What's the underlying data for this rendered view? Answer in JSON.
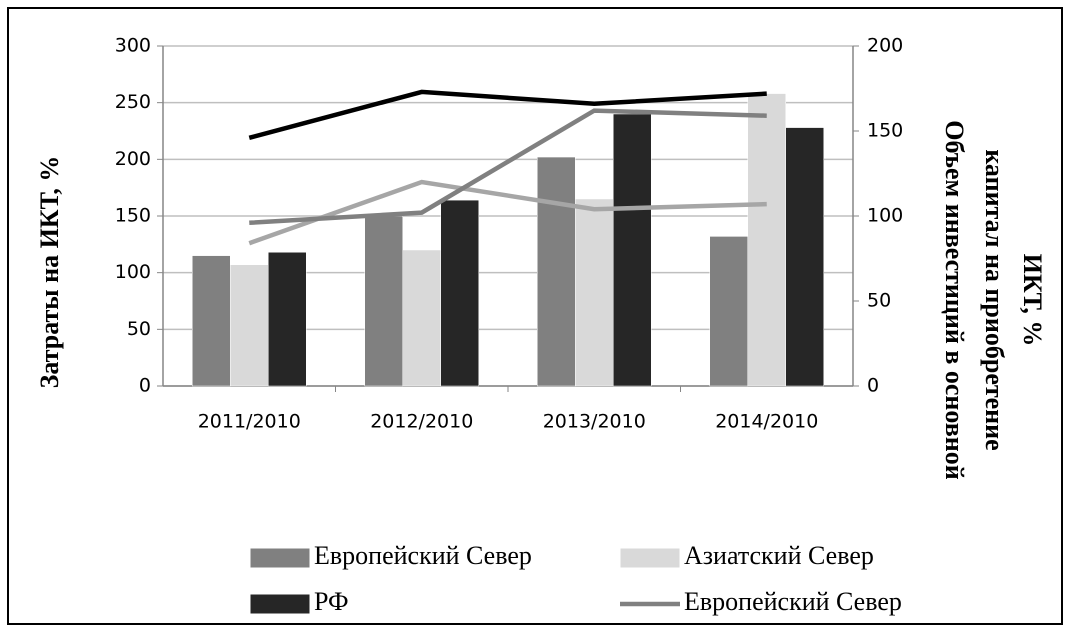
{
  "chart_data": {
    "type": "bar",
    "categories": [
      "2011/2010",
      "2012/2010",
      "2013/2010",
      "2014/2010"
    ],
    "ylabel": "Затраты на ИКТ, %",
    "y2label": [
      "Объем инвестиций в основной",
      "капитал на приобретение",
      "ИКТ, %"
    ],
    "ylim": [
      0,
      300
    ],
    "yticks": [
      0,
      50,
      100,
      150,
      200,
      250,
      300
    ],
    "y2lim": [
      0,
      200
    ],
    "y2ticks": [
      0,
      50,
      100,
      150,
      200
    ],
    "grid": true,
    "series": [
      {
        "name": "Европейский Север",
        "type": "bar",
        "color": "#808080",
        "values": [
          115,
          150,
          202,
          132
        ]
      },
      {
        "name": "Азиатский Север",
        "type": "bar",
        "color": "#d9d9d9",
        "values": [
          107,
          120,
          165,
          258
        ]
      },
      {
        "name": "РФ",
        "type": "bar",
        "color": "#262626",
        "values": [
          118,
          164,
          240,
          228
        ]
      },
      {
        "type": "line",
        "axis": "y2",
        "color": "#000000",
        "values": [
          146,
          173,
          166,
          172
        ]
      },
      {
        "type": "line",
        "axis": "y2",
        "color": "#a6a6a6",
        "values": [
          84,
          120,
          104,
          107
        ]
      },
      {
        "name": "Европейский Север",
        "type": "line",
        "axis": "y2",
        "color": "#808080",
        "values": [
          96,
          102,
          162,
          159
        ]
      }
    ]
  }
}
